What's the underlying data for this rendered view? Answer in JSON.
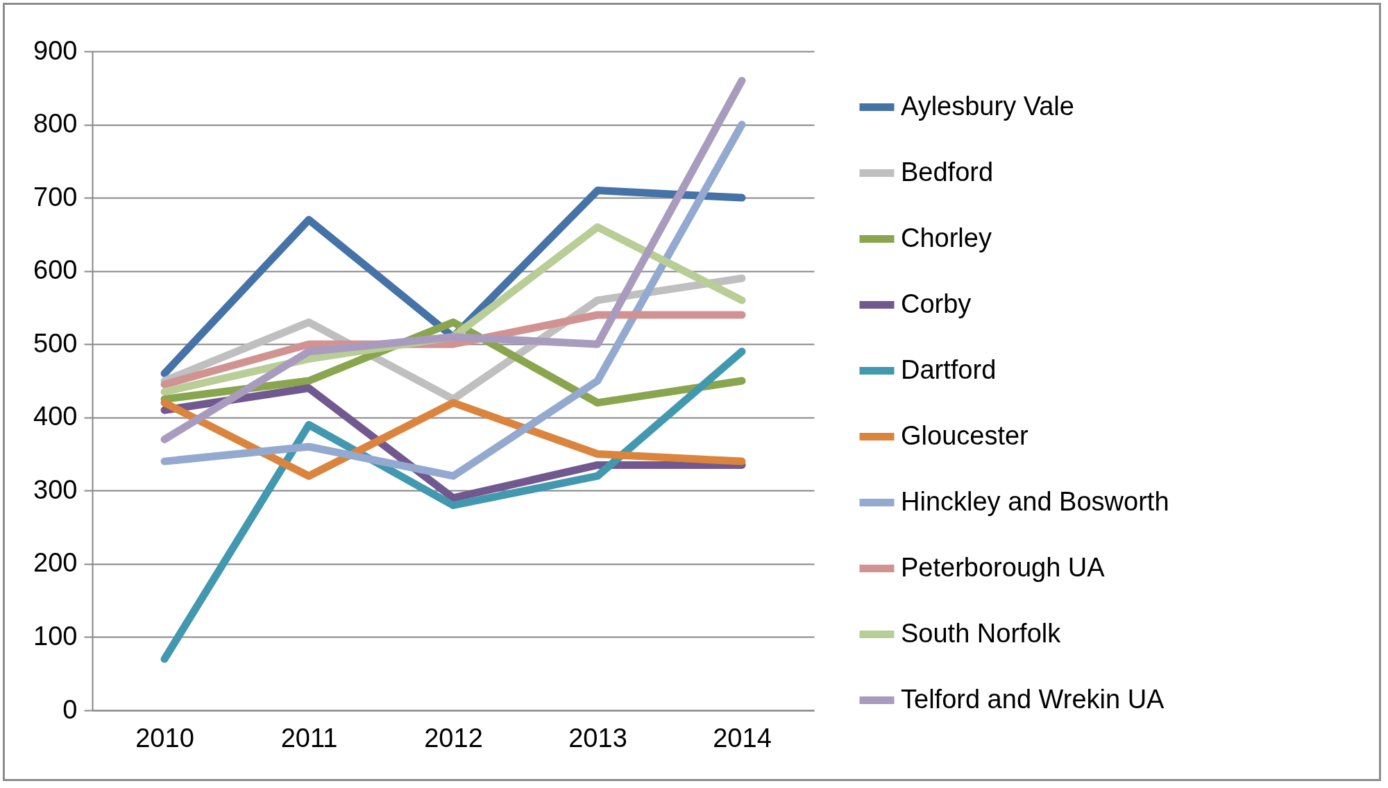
{
  "chart_data": {
    "type": "line",
    "categories": [
      "2010",
      "2011",
      "2012",
      "2013",
      "2014"
    ],
    "series": [
      {
        "name": "Aylesbury Vale",
        "color": "#4572a7",
        "values": [
          460,
          670,
          510,
          710,
          700
        ]
      },
      {
        "name": "Bedford",
        "color": "#bfbfbf",
        "values": [
          450,
          530,
          425,
          560,
          590
        ]
      },
      {
        "name": "Chorley",
        "color": "#89a54e",
        "values": [
          425,
          450,
          530,
          420,
          450
        ]
      },
      {
        "name": "Corby",
        "color": "#71588f",
        "values": [
          410,
          440,
          290,
          335,
          335
        ]
      },
      {
        "name": "Dartford",
        "color": "#4198af",
        "values": [
          70,
          390,
          280,
          320,
          490
        ]
      },
      {
        "name": "Gloucester",
        "color": "#db843d",
        "values": [
          420,
          320,
          420,
          350,
          340
        ]
      },
      {
        "name": "Hinckley and Bosworth",
        "color": "#93a9cf",
        "values": [
          340,
          360,
          320,
          450,
          800
        ]
      },
      {
        "name": "Peterborough UA",
        "color": "#d19392",
        "values": [
          445,
          500,
          500,
          540,
          540
        ]
      },
      {
        "name": "South Norfolk",
        "color": "#b9cd96",
        "values": [
          435,
          480,
          510,
          660,
          560
        ]
      },
      {
        "name": "Telford and Wrekin UA",
        "color": "#a99bbd",
        "values": [
          370,
          490,
          510,
          500,
          860
        ]
      }
    ],
    "ylim": [
      0,
      900
    ],
    "yticks": [
      0,
      100,
      200,
      300,
      400,
      500,
      600,
      700,
      800,
      900
    ],
    "grid": "y",
    "legend": "right",
    "marker": "none",
    "line_style": "solid"
  }
}
